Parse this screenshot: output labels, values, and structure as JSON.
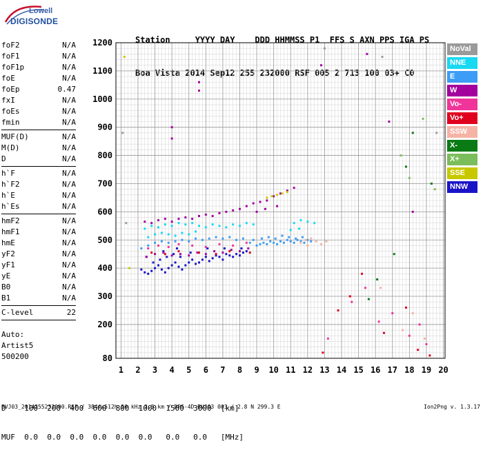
{
  "logo": {
    "line1": "Lowell",
    "line2": "DIGISONDE"
  },
  "header": {
    "row1": "Station     YYYY DAY    DDD HHMMSS P1  FFS S AXN PPS IGA PS",
    "row2": "Boa Vista 2014 Sep12 255 232000 RSF 005 2 713 100 03+ C0"
  },
  "params": {
    "group1": [
      {
        "label": "foF2",
        "value": "N/A"
      },
      {
        "label": "foF1",
        "value": "N/A"
      },
      {
        "label": "foF1p",
        "value": "N/A"
      },
      {
        "label": "foE",
        "value": "N/A"
      },
      {
        "label": "foEp",
        "value": "0.47"
      },
      {
        "label": "fxI",
        "value": "N/A"
      },
      {
        "label": "foEs",
        "value": "N/A"
      },
      {
        "label": "fmin",
        "value": "N/A"
      }
    ],
    "group2": [
      {
        "label": "MUF(D)",
        "value": "N/A"
      },
      {
        "label": "M(D)",
        "value": "N/A"
      },
      {
        "label": "D",
        "value": "N/A"
      }
    ],
    "group3": [
      {
        "label": "h`F",
        "value": "N/A"
      },
      {
        "label": "h`F2",
        "value": "N/A"
      },
      {
        "label": "h`E",
        "value": "N/A"
      },
      {
        "label": "h`Es",
        "value": "N/A"
      }
    ],
    "group4": [
      {
        "label": "hmF2",
        "value": "N/A"
      },
      {
        "label": "hmF1",
        "value": "N/A"
      },
      {
        "label": "hmE",
        "value": "N/A"
      },
      {
        "label": "yF2",
        "value": "N/A"
      },
      {
        "label": "yF1",
        "value": "N/A"
      },
      {
        "label": "yE",
        "value": "N/A"
      },
      {
        "label": "B0",
        "value": "N/A"
      },
      {
        "label": "B1",
        "value": "N/A"
      }
    ],
    "clevel": {
      "label": "C-level",
      "value": "22"
    }
  },
  "auto": {
    "line1": "Auto:",
    "line2": "Artist5",
    "line3": "500200"
  },
  "legend": [
    {
      "label": "NoVal",
      "color": "#9a9a9a"
    },
    {
      "label": "NNE",
      "color": "#19d8f2"
    },
    {
      "label": "E",
      "color": "#3d9cf5"
    },
    {
      "label": "W",
      "color": "#a3009e"
    },
    {
      "label": "Vo-",
      "color": "#f0349a"
    },
    {
      "label": "Vo+",
      "color": "#e0001e"
    },
    {
      "label": "SSW",
      "color": "#f5b3a6"
    },
    {
      "label": "X-",
      "color": "#0a7a14"
    },
    {
      "label": "X+",
      "color": "#7bbd5a"
    },
    {
      "label": "SSE",
      "color": "#c8c800"
    },
    {
      "label": "NNW",
      "color": "#1a14c8"
    }
  ],
  "bottom": {
    "d_row": "D    100  200  400  600  800  1000  1500  3000  [km]",
    "muf_row": "MUF  0.0  0.0  0.0  0.0  0.0  0.0   0.0   0.0   [MHz]"
  },
  "footer": {
    "left": "BVJ03_2014255232000.RSF / 384fx512h 50 kHz 2.5 km / DPS-4D BVJ03 003 / 2.8 N 299.3 E",
    "right": "Ion2Png v. 1.3.17"
  },
  "chart_data": {
    "type": "scatter",
    "title": "",
    "xlabel": "",
    "ylabel": "",
    "x_ticks": [
      1,
      2,
      3,
      4,
      5,
      6,
      7,
      8,
      9,
      10,
      11,
      12,
      13,
      14,
      15,
      16,
      17,
      18,
      19,
      20
    ],
    "y_ticks": [
      80,
      200,
      300,
      400,
      500,
      600,
      700,
      800,
      900,
      1000,
      1100,
      1200
    ],
    "xlim": [
      0.7,
      20.1
    ],
    "ylim": [
      80,
      1200
    ],
    "grid": true,
    "legend_position": "right",
    "series": [
      {
        "name": "NNW",
        "color": "#1a14c8",
        "points": [
          [
            2.2,
            395
          ],
          [
            2.4,
            385
          ],
          [
            2.6,
            380
          ],
          [
            2.8,
            390
          ],
          [
            3.0,
            400
          ],
          [
            3.2,
            410
          ],
          [
            3.4,
            395
          ],
          [
            3.6,
            385
          ],
          [
            3.8,
            400
          ],
          [
            4.0,
            410
          ],
          [
            4.2,
            420
          ],
          [
            4.4,
            405
          ],
          [
            4.6,
            395
          ],
          [
            4.8,
            410
          ],
          [
            5.0,
            420
          ],
          [
            5.2,
            430
          ],
          [
            5.4,
            415
          ],
          [
            5.6,
            420
          ],
          [
            5.8,
            430
          ],
          [
            6.0,
            440
          ],
          [
            6.2,
            425
          ],
          [
            6.4,
            435
          ],
          [
            6.6,
            445
          ],
          [
            6.8,
            440
          ],
          [
            7.0,
            430
          ],
          [
            7.2,
            450
          ],
          [
            7.4,
            445
          ],
          [
            7.6,
            440
          ],
          [
            7.8,
            450
          ],
          [
            8.0,
            445
          ],
          [
            8.2,
            455
          ],
          [
            2.9,
            420
          ],
          [
            3.3,
            430
          ],
          [
            3.7,
            440
          ],
          [
            4.1,
            450
          ],
          [
            4.5,
            440
          ],
          [
            2.5,
            440
          ],
          [
            3.5,
            460
          ],
          [
            4.3,
            470
          ],
          [
            5.1,
            455
          ],
          [
            6.1,
            470
          ],
          [
            7.1,
            470
          ],
          [
            8.1,
            470
          ],
          [
            8.4,
            460
          ]
        ]
      },
      {
        "name": "E",
        "color": "#3d9cf5",
        "points": [
          [
            9.0,
            480
          ],
          [
            9.2,
            485
          ],
          [
            9.4,
            490
          ],
          [
            9.6,
            485
          ],
          [
            9.8,
            495
          ],
          [
            10.0,
            490
          ],
          [
            10.2,
            485
          ],
          [
            10.4,
            495
          ],
          [
            10.6,
            490
          ],
          [
            10.8,
            500
          ],
          [
            11.0,
            495
          ],
          [
            11.2,
            490
          ],
          [
            11.4,
            500
          ],
          [
            11.6,
            495
          ],
          [
            11.8,
            490
          ],
          [
            12.0,
            500
          ],
          [
            12.2,
            495
          ],
          [
            8.6,
            490
          ],
          [
            8.8,
            500
          ],
          [
            9.3,
            505
          ],
          [
            9.7,
            510
          ],
          [
            10.1,
            505
          ],
          [
            10.5,
            515
          ],
          [
            10.9,
            510
          ],
          [
            11.3,
            505
          ],
          [
            11.7,
            510
          ],
          [
            2.2,
            470
          ],
          [
            2.6,
            480
          ],
          [
            3.0,
            490
          ],
          [
            3.4,
            495
          ],
          [
            3.8,
            490
          ],
          [
            4.2,
            495
          ],
          [
            4.6,
            500
          ],
          [
            5.0,
            495
          ],
          [
            5.4,
            505
          ],
          [
            5.8,
            500
          ],
          [
            6.2,
            505
          ],
          [
            6.6,
            510
          ],
          [
            7.0,
            505
          ],
          [
            7.4,
            510
          ],
          [
            7.8,
            500
          ],
          [
            8.2,
            505
          ]
        ]
      },
      {
        "name": "NNE",
        "color": "#19d8f2",
        "points": [
          [
            2.4,
            540
          ],
          [
            2.8,
            550
          ],
          [
            3.2,
            545
          ],
          [
            3.6,
            555
          ],
          [
            4.0,
            550
          ],
          [
            4.4,
            560
          ],
          [
            4.8,
            555
          ],
          [
            5.2,
            560
          ],
          [
            5.6,
            550
          ],
          [
            6.0,
            545
          ],
          [
            6.4,
            555
          ],
          [
            6.8,
            550
          ],
          [
            7.2,
            545
          ],
          [
            7.6,
            555
          ],
          [
            8.0,
            550
          ],
          [
            8.4,
            560
          ],
          [
            8.8,
            555
          ],
          [
            2.6,
            510
          ],
          [
            3.0,
            520
          ],
          [
            3.4,
            525
          ],
          [
            3.8,
            520
          ],
          [
            4.2,
            515
          ],
          [
            4.6,
            525
          ],
          [
            5.0,
            520
          ],
          [
            5.4,
            530
          ],
          [
            11.2,
            560
          ],
          [
            11.6,
            570
          ],
          [
            12.0,
            565
          ],
          [
            12.4,
            560
          ],
          [
            11.0,
            535
          ],
          [
            11.5,
            540
          ]
        ]
      },
      {
        "name": "W",
        "color": "#a3009e",
        "points": [
          [
            2.4,
            565
          ],
          [
            2.8,
            560
          ],
          [
            3.2,
            570
          ],
          [
            3.6,
            575
          ],
          [
            4.0,
            565
          ],
          [
            4.4,
            575
          ],
          [
            4.8,
            580
          ],
          [
            5.2,
            575
          ],
          [
            5.6,
            585
          ],
          [
            6.0,
            590
          ],
          [
            6.4,
            585
          ],
          [
            6.8,
            595
          ],
          [
            7.2,
            600
          ],
          [
            7.6,
            605
          ],
          [
            8.0,
            610
          ],
          [
            8.4,
            620
          ],
          [
            8.8,
            630
          ],
          [
            9.2,
            635
          ],
          [
            9.6,
            640
          ],
          [
            10.0,
            655
          ],
          [
            10.4,
            665
          ],
          [
            10.8,
            675
          ],
          [
            11.2,
            685
          ],
          [
            9.0,
            600
          ],
          [
            9.5,
            610
          ],
          [
            10.2,
            620
          ],
          [
            2.5,
            440
          ],
          [
            3.0,
            450
          ],
          [
            3.5,
            455
          ],
          [
            4.0,
            445
          ],
          [
            4.5,
            450
          ],
          [
            5.0,
            445
          ],
          [
            5.5,
            455
          ],
          [
            6.0,
            450
          ],
          [
            6.5,
            460
          ],
          [
            7.0,
            455
          ],
          [
            7.5,
            465
          ],
          [
            8.0,
            460
          ],
          [
            8.5,
            470
          ],
          [
            4.0,
            900
          ],
          [
            4.0,
            860
          ],
          [
            5.6,
            1060
          ],
          [
            5.6,
            1030
          ],
          [
            15.5,
            1160
          ],
          [
            16.8,
            920
          ],
          [
            18.2,
            600
          ],
          [
            12.8,
            1120
          ]
        ]
      },
      {
        "name": "Vo-",
        "color": "#f0349a",
        "points": [
          [
            2.6,
            470
          ],
          [
            3.2,
            480
          ],
          [
            3.8,
            475
          ],
          [
            4.4,
            485
          ],
          [
            5.2,
            480
          ],
          [
            6.0,
            475
          ],
          [
            6.8,
            485
          ],
          [
            7.6,
            480
          ],
          [
            8.4,
            490
          ],
          [
            13.2,
            150
          ],
          [
            14.6,
            280
          ],
          [
            15.4,
            330
          ],
          [
            16.2,
            210
          ],
          [
            17.0,
            240
          ],
          [
            18.0,
            160
          ],
          [
            18.6,
            200
          ],
          [
            19.0,
            130
          ]
        ]
      },
      {
        "name": "Vo+",
        "color": "#e0001e",
        "points": [
          [
            2.8,
            455
          ],
          [
            3.6,
            450
          ],
          [
            4.4,
            460
          ],
          [
            5.6,
            455
          ],
          [
            6.6,
            450
          ],
          [
            7.4,
            460
          ],
          [
            8.6,
            455
          ],
          [
            12.9,
            100
          ],
          [
            13.8,
            250
          ],
          [
            14.5,
            300
          ],
          [
            15.2,
            380
          ],
          [
            16.5,
            170
          ],
          [
            17.8,
            260
          ],
          [
            18.5,
            110
          ],
          [
            19.2,
            90
          ]
        ]
      },
      {
        "name": "SSW",
        "color": "#f5b3a6",
        "points": [
          [
            11.6,
            490
          ],
          [
            11.9,
            500
          ],
          [
            12.2,
            505
          ],
          [
            12.5,
            495
          ],
          [
            12.8,
            485
          ],
          [
            13.1,
            495
          ],
          [
            12.0,
            480
          ],
          [
            17.6,
            180
          ],
          [
            18.2,
            240
          ],
          [
            18.9,
            150
          ],
          [
            16.3,
            330
          ]
        ]
      },
      {
        "name": "X-",
        "color": "#0a7a14",
        "points": [
          [
            15.6,
            290
          ],
          [
            16.1,
            360
          ],
          [
            17.1,
            450
          ],
          [
            17.8,
            760
          ],
          [
            18.2,
            880
          ],
          [
            19.3,
            700
          ]
        ]
      },
      {
        "name": "X+",
        "color": "#7bbd5a",
        "points": [
          [
            17.5,
            800
          ],
          [
            18.0,
            720
          ],
          [
            18.8,
            930
          ],
          [
            19.5,
            680
          ]
        ]
      },
      {
        "name": "SSE",
        "color": "#c8c800",
        "points": [
          [
            9.6,
            650
          ],
          [
            9.9,
            655
          ],
          [
            10.2,
            660
          ],
          [
            10.5,
            665
          ],
          [
            10.8,
            670
          ],
          [
            1.2,
            1150
          ],
          [
            1.5,
            400
          ]
        ]
      },
      {
        "name": "NoVal",
        "color": "#9a9a9a",
        "points": [
          [
            1.1,
            880
          ],
          [
            1.3,
            560
          ],
          [
            13.0,
            1180
          ],
          [
            14.8,
            1100
          ],
          [
            16.4,
            1150
          ],
          [
            19.6,
            880
          ]
        ]
      }
    ]
  }
}
